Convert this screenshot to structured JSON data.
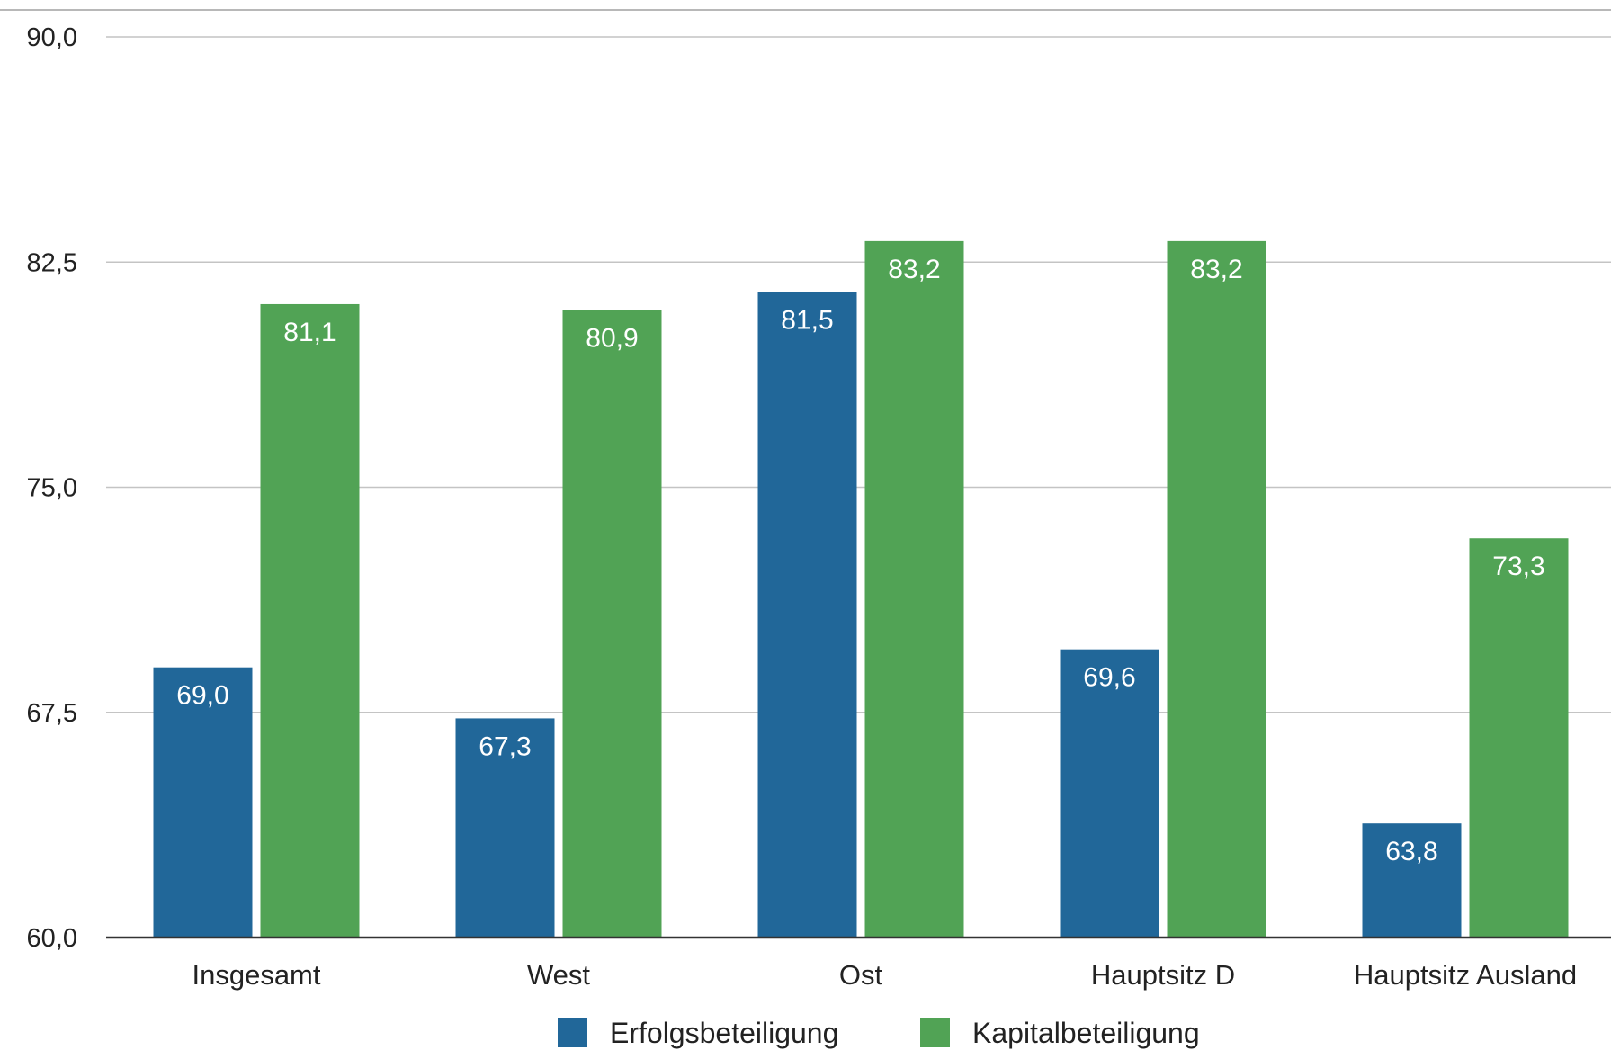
{
  "chart_data": {
    "type": "bar",
    "title": "",
    "xlabel": "",
    "ylabel": "",
    "ylim": [
      60,
      90
    ],
    "yticks": [
      60.0,
      67.5,
      75.0,
      82.5,
      90.0
    ],
    "ytick_labels": [
      "60,0",
      "67,5",
      "75,0",
      "82,5",
      "90,0"
    ],
    "categories": [
      "Insgesamt",
      "West",
      "Ost",
      "Hauptsitz D",
      "Hauptsitz Ausland"
    ],
    "series": [
      {
        "name": "Erfolgsbeteiligung",
        "color": "#216799",
        "values": [
          69.0,
          67.3,
          81.5,
          69.6,
          63.8
        ],
        "labels": [
          "69,0",
          "67,3",
          "81,5",
          "69,6",
          "63,8"
        ]
      },
      {
        "name": "Kapitalbeteiligung",
        "color": "#51a355",
        "values": [
          81.1,
          80.9,
          83.2,
          83.2,
          73.3
        ],
        "labels": [
          "81,1",
          "80,9",
          "83,2",
          "83,2",
          "73,3"
        ]
      }
    ],
    "grid": true,
    "legend_position": "bottom"
  }
}
